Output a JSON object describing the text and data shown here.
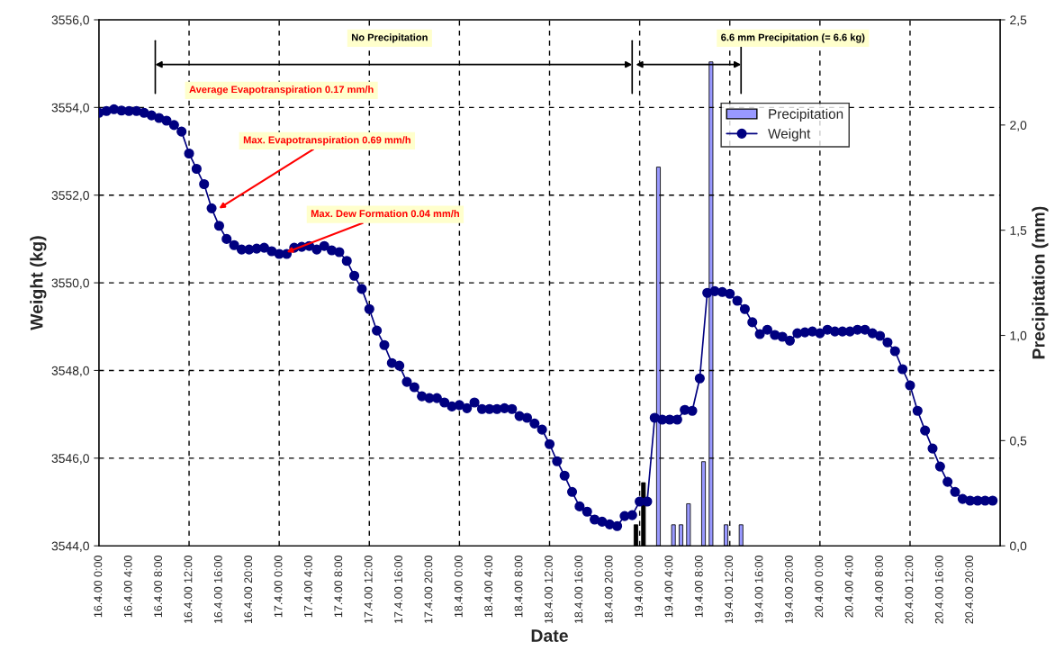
{
  "chart_data": {
    "type": "line",
    "xlabel": "Date",
    "ylabel": "Weight (kg)",
    "y2label": "Precipitation (mm)",
    "xlim": [
      "2000-04-16T00:00",
      "2000-04-21T00:00"
    ],
    "xticks": [
      {
        "value": "2000-04-16T00:00",
        "label": "16.4.00 0:00"
      },
      {
        "value": "2000-04-16T04:00",
        "label": "16.4.00 4:00"
      },
      {
        "value": "2000-04-16T08:00",
        "label": "16.4.00 8:00"
      },
      {
        "value": "2000-04-16T12:00",
        "label": "16.4.00 12:00"
      },
      {
        "value": "2000-04-16T16:00",
        "label": "16.4.00 16:00"
      },
      {
        "value": "2000-04-16T20:00",
        "label": "16.4.00 20:00"
      },
      {
        "value": "2000-04-17T00:00",
        "label": "17.4.00 0:00"
      },
      {
        "value": "2000-04-17T04:00",
        "label": "17.4.00 4:00"
      },
      {
        "value": "2000-04-17T08:00",
        "label": "17.4.00 8:00"
      },
      {
        "value": "2000-04-17T12:00",
        "label": "17.4.00 12:00"
      },
      {
        "value": "2000-04-17T16:00",
        "label": "17.4.00 16:00"
      },
      {
        "value": "2000-04-17T20:00",
        "label": "17.4.00 20:00"
      },
      {
        "value": "2000-04-18T00:00",
        "label": "18.4.00 0:00"
      },
      {
        "value": "2000-04-18T04:00",
        "label": "18.4.00 4:00"
      },
      {
        "value": "2000-04-18T08:00",
        "label": "18.4.00 8:00"
      },
      {
        "value": "2000-04-18T12:00",
        "label": "18.4.00 12:00"
      },
      {
        "value": "2000-04-18T16:00",
        "label": "18.4.00 16:00"
      },
      {
        "value": "2000-04-18T20:00",
        "label": "18.4.00 20:00"
      },
      {
        "value": "2000-04-19T00:00",
        "label": "19.4.00 0:00"
      },
      {
        "value": "2000-04-19T04:00",
        "label": "19.4.00 4:00"
      },
      {
        "value": "2000-04-19T08:00",
        "label": "19.4.00 8:00"
      },
      {
        "value": "2000-04-19T12:00",
        "label": "19.4.00 12:00"
      },
      {
        "value": "2000-04-19T16:00",
        "label": "19.4.00 16:00"
      },
      {
        "value": "2000-04-19T20:00",
        "label": "19.4.00 20:00"
      },
      {
        "value": "2000-04-20T00:00",
        "label": "20.4.00 0:00"
      },
      {
        "value": "2000-04-20T04:00",
        "label": "20.4.00 4:00"
      },
      {
        "value": "2000-04-20T08:00",
        "label": "20.4.00 8:00"
      },
      {
        "value": "2000-04-20T12:00",
        "label": "20.4.00 12:00"
      },
      {
        "value": "2000-04-20T16:00",
        "label": "20.4.00 16:00"
      },
      {
        "value": "2000-04-20T20:00",
        "label": "20.4.00 20:00"
      },
      {
        "value": "2000-04-21T00:00",
        "label": null
      }
    ],
    "ylim": [
      3544,
      3556
    ],
    "yticks": [
      {
        "value": 3544,
        "label": "3544,0"
      },
      {
        "value": 3546,
        "label": "3546,0"
      },
      {
        "value": 3548,
        "label": "3548,0"
      },
      {
        "value": 3550,
        "label": "3550,0"
      },
      {
        "value": 3552,
        "label": "3552,0"
      },
      {
        "value": 3554,
        "label": "3554,0"
      },
      {
        "value": 3556,
        "label": "3556,0"
      }
    ],
    "y2lim": [
      0,
      2.5
    ],
    "y2ticks": [
      {
        "value": 0,
        "label": "0,0"
      },
      {
        "value": 0.5,
        "label": "0,5"
      },
      {
        "value": 1,
        "label": "1,0"
      },
      {
        "value": 1.5,
        "label": "1,5"
      },
      {
        "value": 2,
        "label": "2,0"
      },
      {
        "value": 2.5,
        "label": "2,5"
      }
    ],
    "grid": true,
    "legend": "right",
    "series": [
      {
        "name": "Precipitation",
        "type": "bar",
        "axis": "y2",
        "color": "#9999ff",
        "colors": [
          "#000000",
          "#000000",
          "#9999ff",
          "#9999ff",
          "#9999ff",
          "#9999ff",
          "#9999ff",
          "#9999ff",
          "#9999ff",
          "#9999ff"
        ],
        "x": [
          "2000-04-18T23:30",
          "2000-04-19T00:30",
          "2000-04-19T02:30",
          "2000-04-19T04:30",
          "2000-04-19T05:30",
          "2000-04-19T06:30",
          "2000-04-19T08:30",
          "2000-04-19T09:30",
          "2000-04-19T11:30",
          "2000-04-19T13:30"
        ],
        "values": [
          0.1,
          0.3,
          1.8,
          0.1,
          0.1,
          0.2,
          0.4,
          2.3,
          0.1,
          0.1
        ]
      },
      {
        "name": "Weight",
        "color": "#000080",
        "marker": "circle",
        "line_style": "solid",
        "x": [
          "2000-04-16T00:00",
          "2000-04-16T01:00",
          "2000-04-16T02:00",
          "2000-04-16T03:00",
          "2000-04-16T04:00",
          "2000-04-16T05:00",
          "2000-04-16T06:00",
          "2000-04-16T07:00",
          "2000-04-16T08:00",
          "2000-04-16T09:00",
          "2000-04-16T10:00",
          "2000-04-16T11:00",
          "2000-04-16T12:00",
          "2000-04-16T13:00",
          "2000-04-16T14:00",
          "2000-04-16T15:00",
          "2000-04-16T16:00",
          "2000-04-16T17:00",
          "2000-04-16T18:00",
          "2000-04-16T19:00",
          "2000-04-16T20:00",
          "2000-04-16T21:00",
          "2000-04-16T22:00",
          "2000-04-16T23:00",
          "2000-04-17T00:00",
          "2000-04-17T01:00",
          "2000-04-17T02:00",
          "2000-04-17T03:00",
          "2000-04-17T04:00",
          "2000-04-17T05:00",
          "2000-04-17T06:00",
          "2000-04-17T07:00",
          "2000-04-17T08:00",
          "2000-04-17T09:00",
          "2000-04-17T10:00",
          "2000-04-17T11:00",
          "2000-04-17T12:00",
          "2000-04-17T13:00",
          "2000-04-17T14:00",
          "2000-04-17T15:00",
          "2000-04-17T16:00",
          "2000-04-17T17:00",
          "2000-04-17T18:00",
          "2000-04-17T19:00",
          "2000-04-17T20:00",
          "2000-04-17T21:00",
          "2000-04-17T22:00",
          "2000-04-17T23:00",
          "2000-04-18T00:00",
          "2000-04-18T01:00",
          "2000-04-18T02:00",
          "2000-04-18T03:00",
          "2000-04-18T04:00",
          "2000-04-18T05:00",
          "2000-04-18T06:00",
          "2000-04-18T07:00",
          "2000-04-18T08:00",
          "2000-04-18T09:00",
          "2000-04-18T10:00",
          "2000-04-18T11:00",
          "2000-04-18T12:00",
          "2000-04-18T13:00",
          "2000-04-18T14:00",
          "2000-04-18T15:00",
          "2000-04-18T16:00",
          "2000-04-18T17:00",
          "2000-04-18T18:00",
          "2000-04-18T19:00",
          "2000-04-18T20:00",
          "2000-04-18T21:00",
          "2000-04-18T22:00",
          "2000-04-18T23:00",
          "2000-04-19T00:00",
          "2000-04-19T01:00",
          "2000-04-19T02:00",
          "2000-04-19T03:00",
          "2000-04-19T04:00",
          "2000-04-19T05:00",
          "2000-04-19T06:00",
          "2000-04-19T07:00",
          "2000-04-19T08:00",
          "2000-04-19T09:00",
          "2000-04-19T10:00",
          "2000-04-19T11:00",
          "2000-04-19T12:00",
          "2000-04-19T13:00",
          "2000-04-19T14:00",
          "2000-04-19T15:00",
          "2000-04-19T16:00",
          "2000-04-19T17:00",
          "2000-04-19T18:00",
          "2000-04-19T19:00",
          "2000-04-19T20:00",
          "2000-04-19T21:00",
          "2000-04-19T22:00",
          "2000-04-19T23:00",
          "2000-04-20T00:00",
          "2000-04-20T01:00",
          "2000-04-20T02:00",
          "2000-04-20T03:00",
          "2000-04-20T04:00",
          "2000-04-20T05:00",
          "2000-04-20T06:00",
          "2000-04-20T07:00",
          "2000-04-20T08:00",
          "2000-04-20T09:00",
          "2000-04-20T10:00",
          "2000-04-20T11:00",
          "2000-04-20T12:00",
          "2000-04-20T13:00",
          "2000-04-20T14:00",
          "2000-04-20T15:00",
          "2000-04-20T16:00",
          "2000-04-20T17:00",
          "2000-04-20T18:00",
          "2000-04-20T19:00",
          "2000-04-20T20:00",
          "2000-04-20T21:00",
          "2000-04-20T22:00",
          "2000-04-20T23:00"
        ],
        "values": [
          3553.88,
          3553.92,
          3553.96,
          3553.93,
          3553.92,
          3553.92,
          3553.88,
          3553.82,
          3553.76,
          3553.7,
          3553.6,
          3553.45,
          3552.95,
          3552.6,
          3552.25,
          3551.7,
          3551.3,
          3551.0,
          3550.86,
          3550.76,
          3550.76,
          3550.78,
          3550.8,
          3550.72,
          3550.66,
          3550.66,
          3550.8,
          3550.82,
          3550.84,
          3550.76,
          3550.84,
          3550.74,
          3550.7,
          3550.5,
          3550.16,
          3549.86,
          3549.4,
          3548.91,
          3548.58,
          3548.17,
          3548.11,
          3547.74,
          3547.62,
          3547.41,
          3547.37,
          3547.37,
          3547.27,
          3547.18,
          3547.21,
          3547.14,
          3547.27,
          3547.12,
          3547.12,
          3547.12,
          3547.14,
          3547.12,
          3546.96,
          3546.92,
          3546.79,
          3546.65,
          3546.32,
          3545.93,
          3545.6,
          3545.23,
          3544.9,
          3544.78,
          3544.6,
          3544.55,
          3544.49,
          3544.45,
          3544.68,
          3544.7,
          3545.01,
          3545.01,
          3546.92,
          3546.88,
          3546.88,
          3546.88,
          3547.1,
          3547.08,
          3547.82,
          3549.77,
          3549.81,
          3549.79,
          3549.75,
          3549.59,
          3549.4,
          3549.1,
          3548.83,
          3548.93,
          3548.81,
          3548.77,
          3548.68,
          3548.85,
          3548.87,
          3548.89,
          3548.85,
          3548.93,
          3548.89,
          3548.89,
          3548.89,
          3548.93,
          3548.93,
          3548.85,
          3548.79,
          3548.64,
          3548.44,
          3548.03,
          3547.66,
          3547.08,
          3546.63,
          3546.22,
          3545.81,
          3545.46,
          3545.23,
          3545.07,
          3545.03,
          3545.03,
          3545.03,
          3545.03
        ]
      }
    ],
    "annotations": [
      "No Precipitation",
      "6.6 mm Precipitation (= 6.6 kg)",
      "Average Evapotranspiration 0.17 mm/h",
      {
        "text": "Max. Evapotranspiration 0.69 mm/h",
        "x": "2000-04-16T16:00",
        "y": 3551.7
      },
      {
        "text": "Max. Dew Formation 0.04 mm/h",
        "x": "2000-04-17T01:00",
        "y": 3550.7
      }
    ]
  }
}
